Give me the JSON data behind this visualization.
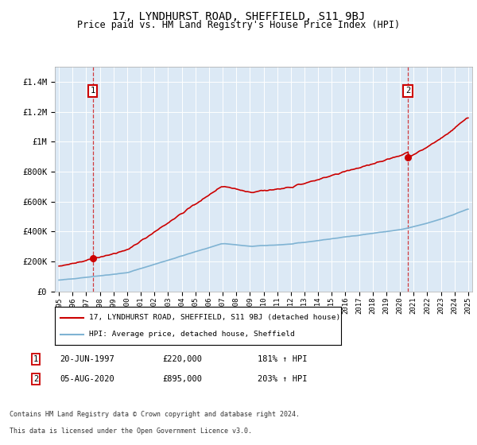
{
  "title": "17, LYNDHURST ROAD, SHEFFIELD, S11 9BJ",
  "subtitle": "Price paid vs. HM Land Registry's House Price Index (HPI)",
  "legend_line1": "17, LYNDHURST ROAD, SHEFFIELD, S11 9BJ (detached house)",
  "legend_line2": "HPI: Average price, detached house, Sheffield",
  "annotation1_label": "1",
  "annotation1_date": "20-JUN-1997",
  "annotation1_price": "£220,000",
  "annotation1_hpi": "181% ↑ HPI",
  "annotation1_year": 1997.47,
  "annotation1_value": 220000,
  "annotation2_label": "2",
  "annotation2_date": "05-AUG-2020",
  "annotation2_price": "£895,000",
  "annotation2_hpi": "203% ↑ HPI",
  "annotation2_year": 2020.59,
  "annotation2_value": 895000,
  "footer_line1": "Contains HM Land Registry data © Crown copyright and database right 2024.",
  "footer_line2": "This data is licensed under the Open Government Licence v3.0.",
  "bg_color": "#dce9f5",
  "red_color": "#cc0000",
  "blue_color": "#7fb3d3",
  "ylim_max": 1500000,
  "title_fontsize": 10,
  "subtitle_fontsize": 8.5
}
